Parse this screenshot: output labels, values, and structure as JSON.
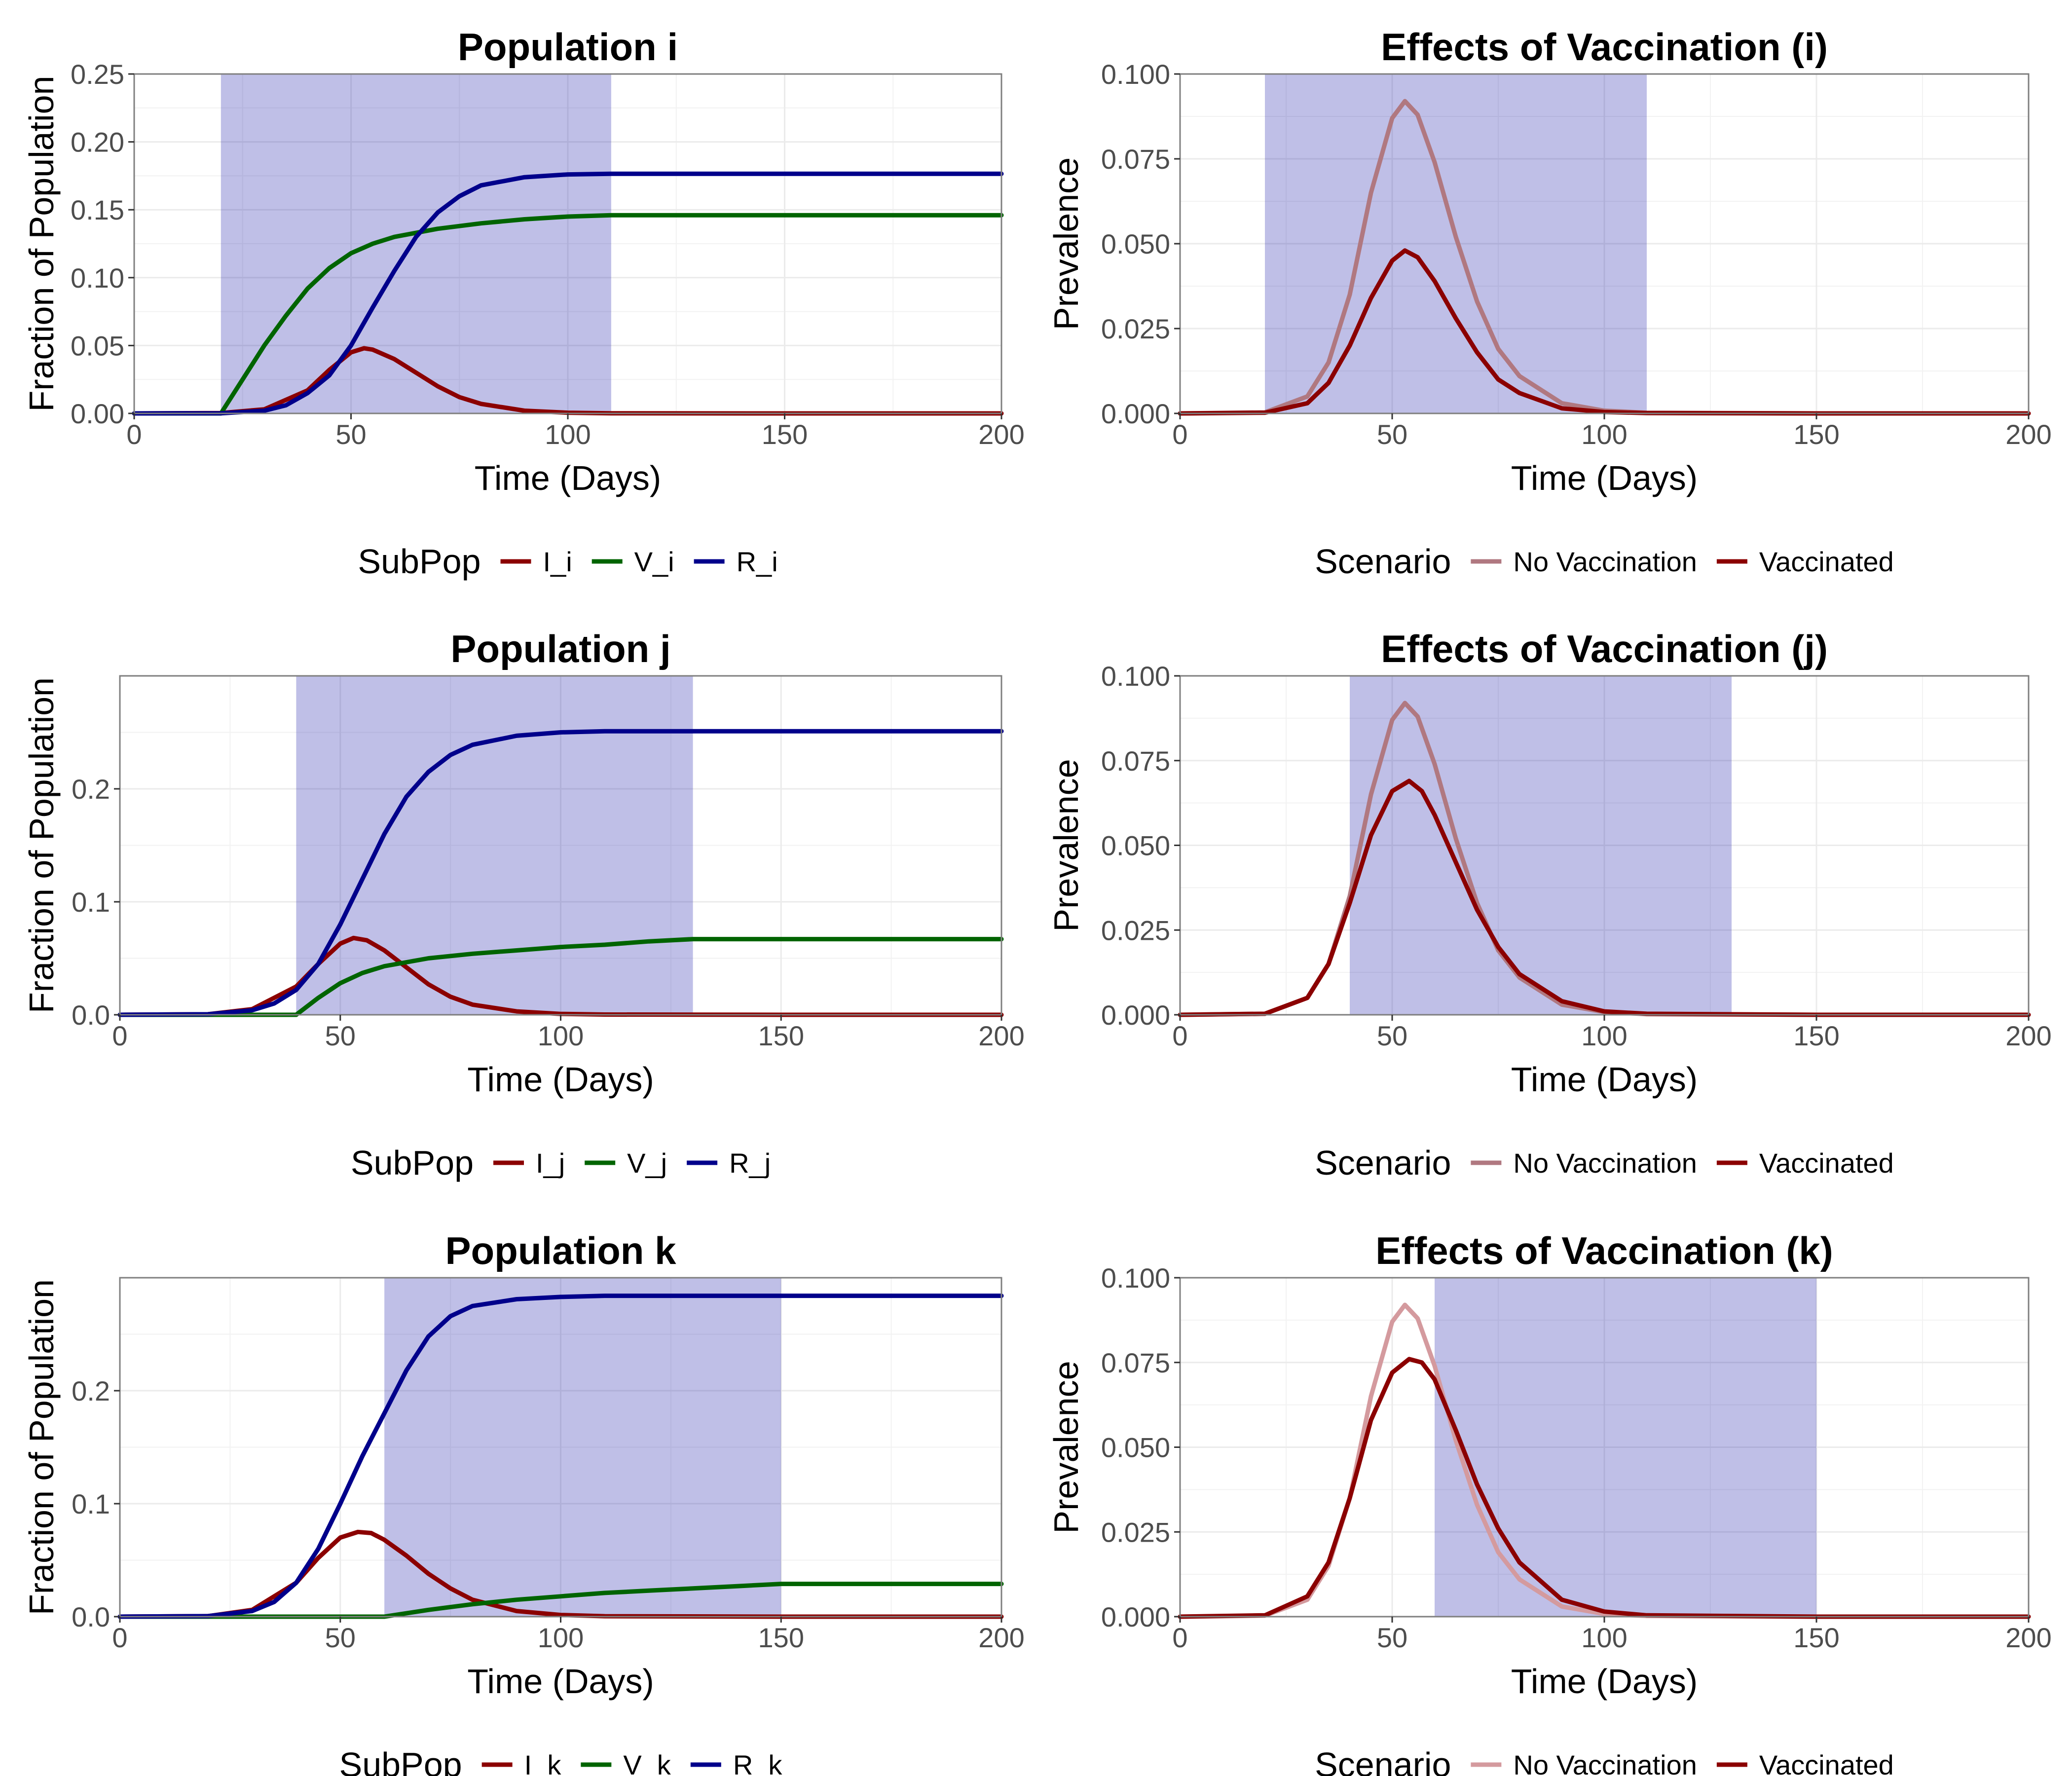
{
  "chart_data": [
    {
      "type": "line",
      "title": "Population i",
      "xlabel": "Time (Days)",
      "ylabel": "Fraction of Population",
      "xlim": [
        0,
        200
      ],
      "ylim": [
        0,
        0.25
      ],
      "x_ticks": [
        0,
        50,
        100,
        150,
        200
      ],
      "y_ticks": [
        0.0,
        0.05,
        0.1,
        0.15,
        0.2,
        0.25
      ],
      "y_tick_labels": [
        "0.00",
        "0.05",
        "0.10",
        "0.15",
        "0.20",
        "0.25"
      ],
      "grid": true,
      "shaded_interval": {
        "start": 20,
        "end": 110,
        "color": "#0000a0"
      },
      "legend": {
        "title": "SubPop",
        "position": "bottom"
      },
      "series": [
        {
          "name": "I_i",
          "color": "#8b0000",
          "x": [
            0,
            20,
            30,
            40,
            45,
            50,
            53,
            55,
            60,
            65,
            70,
            75,
            80,
            90,
            100,
            110,
            150,
            200
          ],
          "y": [
            0,
            0.0003,
            0.003,
            0.017,
            0.032,
            0.045,
            0.048,
            0.047,
            0.04,
            0.03,
            0.02,
            0.012,
            0.007,
            0.002,
            0.0005,
            0.0001,
            0,
            0
          ]
        },
        {
          "name": "V_i",
          "color": "#006400",
          "x": [
            0,
            20,
            25,
            30,
            35,
            40,
            45,
            50,
            55,
            60,
            70,
            80,
            90,
            100,
            110,
            150,
            200
          ],
          "y": [
            0,
            0,
            0.025,
            0.05,
            0.072,
            0.092,
            0.107,
            0.118,
            0.125,
            0.13,
            0.136,
            0.14,
            0.143,
            0.145,
            0.146,
            0.146,
            0.146
          ]
        },
        {
          "name": "R_i",
          "color": "#00008b",
          "x": [
            0,
            20,
            30,
            35,
            40,
            45,
            50,
            55,
            60,
            65,
            70,
            75,
            80,
            90,
            100,
            110,
            150,
            200
          ],
          "y": [
            0,
            0.0001,
            0.002,
            0.006,
            0.015,
            0.028,
            0.05,
            0.078,
            0.105,
            0.13,
            0.148,
            0.16,
            0.168,
            0.174,
            0.176,
            0.1765,
            0.1765,
            0.1765
          ]
        }
      ]
    },
    {
      "type": "line",
      "title": "Effects of Vaccination (i)",
      "xlabel": "Time (Days)",
      "ylabel": "Prevalence",
      "xlim": [
        0,
        200
      ],
      "ylim": [
        0,
        0.1
      ],
      "x_ticks": [
        0,
        50,
        100,
        150,
        200
      ],
      "y_ticks": [
        0.0,
        0.025,
        0.05,
        0.075,
        0.1
      ],
      "y_tick_labels": [
        "0.000",
        "0.025",
        "0.050",
        "0.075",
        "0.100"
      ],
      "grid": true,
      "shaded_interval": {
        "start": 20,
        "end": 110,
        "color": "#0000a0"
      },
      "legend": {
        "title": "Scenario",
        "position": "bottom"
      },
      "series": [
        {
          "name": "No Vaccination",
          "color": "#b07880",
          "x": [
            0,
            20,
            30,
            35,
            40,
            45,
            50,
            53,
            56,
            60,
            65,
            70,
            75,
            80,
            90,
            100,
            110,
            150,
            200
          ],
          "y": [
            0,
            0.0003,
            0.005,
            0.015,
            0.035,
            0.065,
            0.087,
            0.092,
            0.088,
            0.074,
            0.052,
            0.033,
            0.019,
            0.011,
            0.003,
            0.0008,
            0.0002,
            0,
            0
          ]
        },
        {
          "name": "Vaccinated",
          "color": "#8b0000",
          "x": [
            0,
            20,
            30,
            35,
            40,
            45,
            50,
            53,
            56,
            60,
            65,
            70,
            75,
            80,
            90,
            100,
            110,
            150,
            200
          ],
          "y": [
            0,
            0.0002,
            0.003,
            0.009,
            0.02,
            0.034,
            0.045,
            0.048,
            0.046,
            0.039,
            0.028,
            0.018,
            0.01,
            0.006,
            0.0015,
            0.0004,
            0.0001,
            0,
            0
          ]
        }
      ]
    },
    {
      "type": "line",
      "title": "Population j",
      "xlabel": "Time (Days)",
      "ylabel": "Fraction of Population",
      "xlim": [
        0,
        200
      ],
      "ylim": [
        0,
        0.3
      ],
      "x_ticks": [
        0,
        50,
        100,
        150,
        200
      ],
      "y_ticks": [
        0.0,
        0.1,
        0.2
      ],
      "y_tick_labels": [
        "0.0",
        "0.1",
        "0.2"
      ],
      "grid": true,
      "shaded_interval": {
        "start": 40,
        "end": 130,
        "color": "#0000a0"
      },
      "legend": {
        "title": "SubPop",
        "position": "bottom"
      },
      "series": [
        {
          "name": "I_j",
          "color": "#8b0000",
          "x": [
            0,
            20,
            30,
            40,
            45,
            50,
            53,
            56,
            60,
            65,
            70,
            75,
            80,
            90,
            100,
            110,
            150,
            200
          ],
          "y": [
            0,
            0.0005,
            0.005,
            0.025,
            0.045,
            0.063,
            0.068,
            0.066,
            0.057,
            0.042,
            0.027,
            0.016,
            0.009,
            0.003,
            0.0008,
            0.0002,
            0,
            0
          ]
        },
        {
          "name": "V_j",
          "color": "#006400",
          "x": [
            0,
            40,
            45,
            50,
            55,
            60,
            70,
            80,
            90,
            100,
            110,
            120,
            130,
            150,
            200
          ],
          "y": [
            0,
            0,
            0.015,
            0.028,
            0.037,
            0.043,
            0.05,
            0.054,
            0.057,
            0.06,
            0.062,
            0.065,
            0.067,
            0.067,
            0.067
          ]
        },
        {
          "name": "R_j",
          "color": "#00008b",
          "x": [
            0,
            20,
            30,
            35,
            40,
            45,
            50,
            55,
            60,
            65,
            70,
            75,
            80,
            90,
            100,
            110,
            130,
            150,
            200
          ],
          "y": [
            0,
            0.0005,
            0.004,
            0.01,
            0.022,
            0.045,
            0.08,
            0.12,
            0.16,
            0.193,
            0.215,
            0.23,
            0.239,
            0.247,
            0.25,
            0.251,
            0.251,
            0.251,
            0.251
          ]
        }
      ]
    },
    {
      "type": "line",
      "title": "Effects of Vaccination (j)",
      "xlabel": "Time (Days)",
      "ylabel": "Prevalence",
      "xlim": [
        0,
        200
      ],
      "ylim": [
        0,
        0.1
      ],
      "x_ticks": [
        0,
        50,
        100,
        150,
        200
      ],
      "y_ticks": [
        0.0,
        0.025,
        0.05,
        0.075,
        0.1
      ],
      "y_tick_labels": [
        "0.000",
        "0.025",
        "0.050",
        "0.075",
        "0.100"
      ],
      "grid": true,
      "shaded_interval": {
        "start": 40,
        "end": 130,
        "color": "#0000a0"
      },
      "legend": {
        "title": "Scenario",
        "position": "bottom"
      },
      "series": [
        {
          "name": "No Vaccination",
          "color": "#b07880",
          "x": [
            0,
            20,
            30,
            35,
            40,
            45,
            50,
            53,
            56,
            60,
            65,
            70,
            75,
            80,
            90,
            100,
            110,
            150,
            200
          ],
          "y": [
            0,
            0.0003,
            0.005,
            0.015,
            0.035,
            0.065,
            0.087,
            0.092,
            0.088,
            0.074,
            0.052,
            0.033,
            0.019,
            0.011,
            0.003,
            0.0008,
            0.0002,
            0,
            0
          ]
        },
        {
          "name": "Vaccinated",
          "color": "#8b0000",
          "x": [
            0,
            20,
            30,
            35,
            40,
            45,
            50,
            54,
            57,
            60,
            65,
            70,
            75,
            80,
            90,
            100,
            110,
            150,
            200
          ],
          "y": [
            0,
            0.0003,
            0.005,
            0.015,
            0.033,
            0.053,
            0.066,
            0.069,
            0.066,
            0.059,
            0.045,
            0.031,
            0.02,
            0.012,
            0.004,
            0.001,
            0.0003,
            0,
            0
          ]
        }
      ]
    },
    {
      "type": "line",
      "title": "Population k",
      "xlabel": "Time (Days)",
      "ylabel": "Fraction of Population",
      "xlim": [
        0,
        200
      ],
      "ylim": [
        0,
        0.3
      ],
      "x_ticks": [
        0,
        50,
        100,
        150,
        200
      ],
      "y_ticks": [
        0.0,
        0.1,
        0.2
      ],
      "y_tick_labels": [
        "0.0",
        "0.1",
        "0.2"
      ],
      "grid": true,
      "shaded_interval": {
        "start": 60,
        "end": 150,
        "color": "#0000a0"
      },
      "legend": {
        "title": "SubPop",
        "position": "bottom"
      },
      "series": [
        {
          "name": "I_k",
          "color": "#8b0000",
          "x": [
            0,
            20,
            30,
            40,
            45,
            50,
            54,
            57,
            60,
            65,
            70,
            75,
            80,
            90,
            100,
            110,
            150,
            200
          ],
          "y": [
            0,
            0.0005,
            0.006,
            0.03,
            0.052,
            0.07,
            0.075,
            0.074,
            0.068,
            0.054,
            0.038,
            0.025,
            0.015,
            0.005,
            0.0015,
            0.0004,
            0,
            0
          ]
        },
        {
          "name": "V_k",
          "color": "#006400",
          "x": [
            0,
            60,
            70,
            80,
            90,
            100,
            110,
            120,
            130,
            140,
            150,
            200
          ],
          "y": [
            0,
            0,
            0.006,
            0.011,
            0.015,
            0.018,
            0.021,
            0.023,
            0.025,
            0.027,
            0.029,
            0.029
          ]
        },
        {
          "name": "R_k",
          "color": "#00008b",
          "x": [
            0,
            20,
            30,
            35,
            40,
            45,
            50,
            55,
            60,
            65,
            70,
            75,
            80,
            90,
            100,
            110,
            150,
            200
          ],
          "y": [
            0,
            0.0005,
            0.005,
            0.013,
            0.03,
            0.06,
            0.1,
            0.142,
            0.18,
            0.218,
            0.248,
            0.266,
            0.275,
            0.281,
            0.283,
            0.284,
            0.284,
            0.284
          ]
        }
      ]
    },
    {
      "type": "line",
      "title": "Effects of Vaccination (k)",
      "xlabel": "Time (Days)",
      "ylabel": "Prevalence",
      "xlim": [
        0,
        200
      ],
      "ylim": [
        0,
        0.1
      ],
      "x_ticks": [
        0,
        50,
        100,
        150,
        200
      ],
      "y_ticks": [
        0.0,
        0.025,
        0.05,
        0.075,
        0.1
      ],
      "y_tick_labels": [
        "0.000",
        "0.025",
        "0.050",
        "0.075",
        "0.100"
      ],
      "grid": true,
      "shaded_interval": {
        "start": 60,
        "end": 150,
        "color": "#0000a0"
      },
      "legend": {
        "title": "Scenario",
        "position": "bottom"
      },
      "series": [
        {
          "name": "No Vaccination",
          "color": "#d49a9e",
          "x": [
            0,
            20,
            30,
            35,
            40,
            45,
            50,
            53,
            56,
            60,
            65,
            70,
            75,
            80,
            90,
            100,
            110,
            150,
            200
          ],
          "y": [
            0,
            0.0003,
            0.005,
            0.015,
            0.035,
            0.065,
            0.087,
            0.092,
            0.088,
            0.074,
            0.052,
            0.033,
            0.019,
            0.011,
            0.003,
            0.0008,
            0.0002,
            0,
            0
          ]
        },
        {
          "name": "Vaccinated",
          "color": "#8b0000",
          "x": [
            0,
            20,
            30,
            35,
            40,
            45,
            50,
            54,
            57,
            60,
            65,
            70,
            75,
            80,
            90,
            100,
            110,
            150,
            200
          ],
          "y": [
            0,
            0.0004,
            0.006,
            0.016,
            0.035,
            0.058,
            0.072,
            0.076,
            0.075,
            0.07,
            0.055,
            0.039,
            0.026,
            0.016,
            0.005,
            0.0015,
            0.0004,
            0,
            0
          ]
        }
      ]
    }
  ]
}
